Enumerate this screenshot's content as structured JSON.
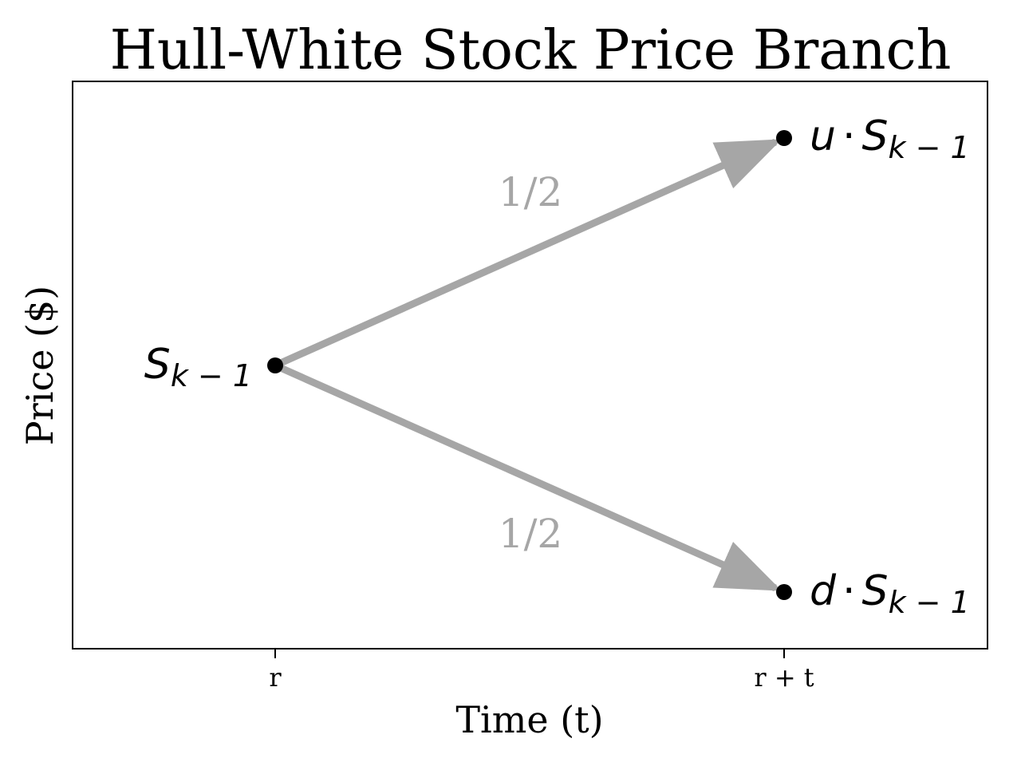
{
  "title": "Hull-White Stock Price Branch",
  "axes": {
    "xlabel": "Time (t)",
    "ylabel": "Price ($)",
    "xticks": [
      "r",
      "r + t"
    ]
  },
  "nodes": {
    "start": {
      "base": "S",
      "subscript": "k − 1"
    },
    "up": {
      "factor": "u",
      "dot": "·",
      "base": "S",
      "subscript": "k − 1"
    },
    "down": {
      "factor": "d",
      "dot": "·",
      "base": "S",
      "subscript": "k − 1"
    }
  },
  "branches": {
    "up_probability": "1/2",
    "down_probability": "1/2"
  },
  "colors": {
    "arrow": "#a6a6a6",
    "node": "#000000",
    "text": "#000000",
    "probability": "#a6a6a6"
  }
}
